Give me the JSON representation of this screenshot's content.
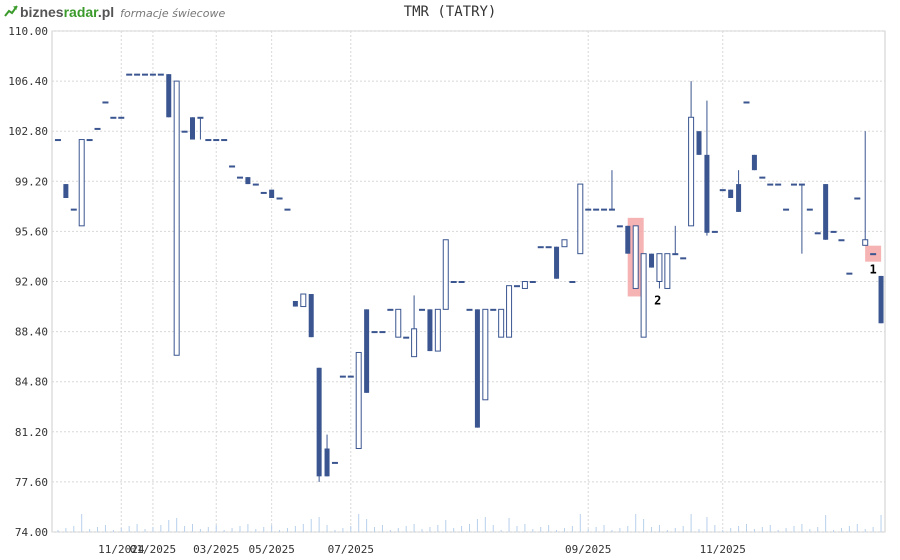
{
  "header": {
    "logo_part1": "biznes",
    "logo_part2": "radar",
    "logo_part3": ".pl",
    "logo_sub": "formacje świecowe",
    "title": "TMR (TATRY)"
  },
  "colors": {
    "bear": "#3a5590",
    "bull_stroke": "#3a5590",
    "bull_fill": "#ffffff",
    "highlight": "#f4a6a6",
    "grid": "#d8d8d8",
    "volume": "#b8d0ec",
    "axis_text": "#333333"
  },
  "chart_data": {
    "type": "candlestick",
    "title": "TMR (TATRY)",
    "ylim": [
      74.0,
      110.0
    ],
    "yticks": [
      "110.00",
      "106.40",
      "102.80",
      "99.20",
      "95.60",
      "92.00",
      "88.40",
      "84.80",
      "81.20",
      "77.60",
      "74.00"
    ],
    "xticks": [
      "11/2024",
      "01/2025",
      "03/2025",
      "05/2025",
      "07/2025",
      "09/2025",
      "11/2025"
    ],
    "annotations": [
      {
        "label": "1",
        "index": 103
      },
      {
        "label": "2",
        "index": 73
      }
    ],
    "candles": [
      [
        102.2,
        102.2,
        102.2,
        102.2
      ],
      [
        99.0,
        99.0,
        98.0,
        98.0
      ],
      [
        97.2,
        97.2,
        97.2,
        97.2
      ],
      [
        96.0,
        102.2,
        96.0,
        102.2
      ],
      [
        102.2,
        102.2,
        102.2,
        102.2
      ],
      [
        103.0,
        103.0,
        103.0,
        103.0
      ],
      [
        104.9,
        104.9,
        104.9,
        104.9
      ],
      [
        103.8,
        103.8,
        103.8,
        103.8
      ],
      [
        103.8,
        103.8,
        103.8,
        103.8
      ],
      [
        106.9,
        106.9,
        106.9,
        106.9
      ],
      [
        106.9,
        106.9,
        106.9,
        106.9
      ],
      [
        106.9,
        106.9,
        106.9,
        106.9
      ],
      [
        106.9,
        106.9,
        106.9,
        106.9
      ],
      [
        106.9,
        106.9,
        106.9,
        106.9
      ],
      [
        106.9,
        106.9,
        103.8,
        103.8
      ],
      [
        86.7,
        106.4,
        86.7,
        106.4
      ],
      [
        102.8,
        102.8,
        102.8,
        102.8
      ],
      [
        103.8,
        103.8,
        102.2,
        102.2
      ],
      [
        103.8,
        103.8,
        102.2,
        103.8
      ],
      [
        102.2,
        102.2,
        102.2,
        102.2
      ],
      [
        102.2,
        102.2,
        102.2,
        102.2
      ],
      [
        102.2,
        102.2,
        102.2,
        102.2
      ],
      [
        100.3,
        100.3,
        100.3,
        100.3
      ],
      [
        99.5,
        99.5,
        99.5,
        99.5
      ],
      [
        99.5,
        99.5,
        99.0,
        99.0
      ],
      [
        99.0,
        99.0,
        99.0,
        99.0
      ],
      [
        98.4,
        98.4,
        98.4,
        98.4
      ],
      [
        98.6,
        98.6,
        98.0,
        98.0
      ],
      [
        98.0,
        98.0,
        98.0,
        98.0
      ],
      [
        97.2,
        97.2,
        97.2,
        97.2
      ],
      [
        90.6,
        90.6,
        90.2,
        90.2
      ],
      [
        90.2,
        91.1,
        90.2,
        91.1
      ],
      [
        91.1,
        91.1,
        88.0,
        88.0
      ],
      [
        85.8,
        85.8,
        77.6,
        78.0
      ],
      [
        80.0,
        81.0,
        78.0,
        78.0
      ],
      [
        79.0,
        79.0,
        79.0,
        79.0
      ],
      [
        85.2,
        85.2,
        85.2,
        85.2
      ],
      [
        85.2,
        85.2,
        85.2,
        85.2
      ],
      [
        80.0,
        86.9,
        80.0,
        86.9
      ],
      [
        90.0,
        90.0,
        84.0,
        84.0
      ],
      [
        88.4,
        88.4,
        88.4,
        88.4
      ],
      [
        88.4,
        88.4,
        88.4,
        88.4
      ],
      [
        90.0,
        90.0,
        90.0,
        90.0
      ],
      [
        88.0,
        90.0,
        88.0,
        90.0
      ],
      [
        88.0,
        88.0,
        88.0,
        88.0
      ],
      [
        86.6,
        91.0,
        86.6,
        88.6
      ],
      [
        90.0,
        90.0,
        90.0,
        90.0
      ],
      [
        90.0,
        90.0,
        87.0,
        87.0
      ],
      [
        87.0,
        90.0,
        87.0,
        90.0
      ],
      [
        90.0,
        95.0,
        90.0,
        95.0
      ],
      [
        92.0,
        92.0,
        92.0,
        92.0
      ],
      [
        92.0,
        92.0,
        92.0,
        92.0
      ],
      [
        90.0,
        90.0,
        90.0,
        90.0
      ],
      [
        90.0,
        90.0,
        81.5,
        81.5
      ],
      [
        83.5,
        90.0,
        83.5,
        90.0
      ],
      [
        90.0,
        90.0,
        90.0,
        90.0
      ],
      [
        88.0,
        90.0,
        88.0,
        90.0
      ],
      [
        88.0,
        91.7,
        88.0,
        91.7
      ],
      [
        91.7,
        91.7,
        91.7,
        91.7
      ],
      [
        91.5,
        92.0,
        91.5,
        92.0
      ],
      [
        92.0,
        92.0,
        92.0,
        92.0
      ],
      [
        94.5,
        94.5,
        94.5,
        94.5
      ],
      [
        94.5,
        94.5,
        94.5,
        94.5
      ],
      [
        94.5,
        94.5,
        92.2,
        92.2
      ],
      [
        94.5,
        95.0,
        94.5,
        95.0
      ],
      [
        92.0,
        92.0,
        92.0,
        92.0
      ],
      [
        94.0,
        99.0,
        94.0,
        99.0
      ],
      [
        97.2,
        97.2,
        97.2,
        97.2
      ],
      [
        97.2,
        97.2,
        97.2,
        97.2
      ],
      [
        97.2,
        97.2,
        97.2,
        97.2
      ],
      [
        97.2,
        100.0,
        97.2,
        97.2
      ],
      [
        96.0,
        96.0,
        96.0,
        96.0
      ],
      [
        96.0,
        96.0,
        94.0,
        94.0
      ],
      [
        91.5,
        96.0,
        91.5,
        96.0
      ],
      [
        88.0,
        94.0,
        88.0,
        94.0
      ],
      [
        94.0,
        94.0,
        93.0,
        93.0
      ],
      [
        92.0,
        94.0,
        91.5,
        94.0
      ],
      [
        91.5,
        94.0,
        91.5,
        94.0
      ],
      [
        94.0,
        96.0,
        94.0,
        94.0
      ],
      [
        93.7,
        93.7,
        93.7,
        93.7
      ],
      [
        96.0,
        106.4,
        96.0,
        103.8
      ],
      [
        102.8,
        102.8,
        101.1,
        101.1
      ],
      [
        101.1,
        105.0,
        95.3,
        95.5
      ],
      [
        95.6,
        95.6,
        95.6,
        95.6
      ],
      [
        98.6,
        98.6,
        98.6,
        98.6
      ],
      [
        98.6,
        98.6,
        98.0,
        98.0
      ],
      [
        99.0,
        100.0,
        97.0,
        97.0
      ],
      [
        104.9,
        104.9,
        104.9,
        104.9
      ],
      [
        101.1,
        101.1,
        100.0,
        100.0
      ],
      [
        99.5,
        99.5,
        99.5,
        99.5
      ],
      [
        99.0,
        99.0,
        99.0,
        99.0
      ],
      [
        99.0,
        99.0,
        99.0,
        99.0
      ],
      [
        97.2,
        97.2,
        97.2,
        97.2
      ],
      [
        99.0,
        99.0,
        99.0,
        99.0
      ],
      [
        99.0,
        99.0,
        94.0,
        99.0
      ],
      [
        97.2,
        97.2,
        97.2,
        97.2
      ],
      [
        95.5,
        95.5,
        95.5,
        95.5
      ],
      [
        99.0,
        99.0,
        95.0,
        95.0
      ],
      [
        95.6,
        95.6,
        95.6,
        95.6
      ],
      [
        95.0,
        95.0,
        95.0,
        95.0
      ],
      [
        92.6,
        92.6,
        92.6,
        92.6
      ],
      [
        98.0,
        98.0,
        98.0,
        98.0
      ],
      [
        94.6,
        102.8,
        94.6,
        95.0
      ],
      [
        94.0,
        94.0,
        94.0,
        94.0
      ],
      [
        92.4,
        92.4,
        89.0,
        89.0
      ]
    ]
  }
}
